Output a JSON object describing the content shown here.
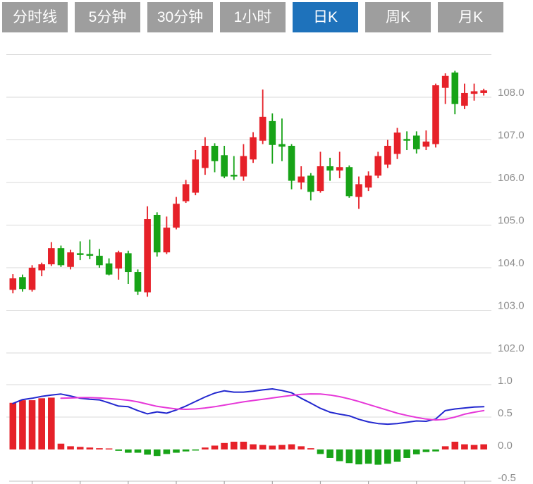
{
  "tabs": {
    "items": [
      {
        "label": "分时线",
        "active": false
      },
      {
        "label": "5分钟",
        "active": false
      },
      {
        "label": "30分钟",
        "active": false
      },
      {
        "label": "1小时",
        "active": false
      },
      {
        "label": "日K",
        "active": true
      },
      {
        "label": "周K",
        "active": false
      },
      {
        "label": "月K",
        "active": false
      }
    ]
  },
  "colors": {
    "tab_bg": "#9e9e9e",
    "tab_active_bg": "#1e72bb",
    "tab_text": "#ffffff",
    "up": "#e62129",
    "down": "#17a317",
    "dif_line": "#2328cf",
    "dea_line": "#e637d8",
    "grid": "#dadada",
    "axis_text": "#8f8f8f",
    "axis_line": "#cfcfcf"
  },
  "chart_data": {
    "type": "candlestick_with_macd",
    "convention": "red = close>open (up), green = close<open (down), Chinese style",
    "selected_timeframe": "日K",
    "price_panel": {
      "grid": true,
      "y_ticks": [
        108.0,
        107.0,
        106.0,
        105.0,
        104.0,
        103.0,
        102.0
      ],
      "y_range_visible": [
        101.9,
        109.1
      ],
      "candles_ohlc": [
        [
          103.48,
          103.85,
          103.4,
          103.75
        ],
        [
          103.78,
          103.84,
          103.44,
          103.5
        ],
        [
          103.48,
          104.06,
          103.44,
          104.0
        ],
        [
          103.94,
          104.12,
          103.8,
          104.08
        ],
        [
          104.08,
          104.6,
          104.04,
          104.46
        ],
        [
          104.46,
          104.52,
          104.02,
          104.06
        ],
        [
          104.02,
          104.42,
          103.96,
          104.36
        ],
        [
          104.34,
          104.62,
          104.18,
          104.3
        ],
        [
          104.32,
          104.66,
          104.2,
          104.28
        ],
        [
          104.28,
          104.44,
          104.0,
          104.06
        ],
        [
          104.1,
          104.22,
          103.82,
          103.84
        ],
        [
          103.98,
          104.4,
          103.72,
          104.36
        ],
        [
          104.34,
          104.4,
          103.62,
          103.9
        ],
        [
          103.9,
          103.96,
          103.36,
          103.44
        ],
        [
          103.42,
          105.44,
          103.32,
          105.14
        ],
        [
          105.24,
          105.3,
          104.26,
          104.36
        ],
        [
          104.36,
          105.2,
          104.32,
          104.94
        ],
        [
          104.94,
          105.66,
          104.9,
          105.5
        ],
        [
          105.56,
          106.06,
          105.52,
          105.96
        ],
        [
          105.76,
          106.76,
          105.7,
          106.54
        ],
        [
          106.34,
          107.06,
          106.18,
          106.86
        ],
        [
          106.86,
          106.92,
          106.24,
          106.5
        ],
        [
          106.64,
          106.86,
          106.1,
          106.14
        ],
        [
          106.18,
          106.62,
          106.06,
          106.14
        ],
        [
          106.14,
          106.9,
          106.04,
          106.62
        ],
        [
          106.54,
          107.18,
          106.46,
          107.06
        ],
        [
          106.98,
          108.18,
          106.9,
          107.54
        ],
        [
          107.44,
          107.62,
          106.44,
          106.88
        ],
        [
          106.9,
          107.5,
          106.5,
          106.84
        ],
        [
          106.86,
          106.9,
          105.84,
          106.04
        ],
        [
          106.0,
          106.38,
          105.84,
          106.14
        ],
        [
          106.16,
          106.22,
          105.58,
          105.78
        ],
        [
          105.8,
          106.72,
          105.76,
          106.38
        ],
        [
          106.38,
          106.58,
          106.04,
          106.28
        ],
        [
          106.28,
          106.72,
          106.1,
          106.36
        ],
        [
          106.36,
          106.4,
          105.64,
          105.68
        ],
        [
          105.66,
          106.14,
          105.38,
          105.96
        ],
        [
          105.88,
          106.26,
          105.8,
          106.16
        ],
        [
          106.16,
          106.72,
          106.1,
          106.62
        ],
        [
          106.42,
          107.0,
          106.34,
          106.86
        ],
        [
          106.67,
          107.28,
          106.55,
          107.17
        ],
        [
          107.02,
          107.2,
          106.76,
          106.98
        ],
        [
          107.1,
          107.2,
          106.68,
          106.78
        ],
        [
          106.84,
          107.22,
          106.76,
          106.96
        ],
        [
          106.9,
          108.32,
          106.82,
          108.28
        ],
        [
          108.22,
          108.56,
          107.84,
          108.5
        ],
        [
          108.58,
          108.62,
          107.6,
          107.84
        ],
        [
          107.8,
          108.32,
          107.72,
          108.1
        ],
        [
          108.08,
          108.32,
          107.92,
          108.14
        ],
        [
          108.1,
          108.2,
          108.04,
          108.16
        ]
      ]
    },
    "macd_panel": {
      "y_ticks": [
        1.0,
        0.5,
        0.0,
        -0.5
      ],
      "histogram": [
        0.72,
        0.76,
        0.76,
        0.79,
        0.8,
        0.09,
        0.05,
        0.04,
        0.03,
        0.02,
        0.01,
        -0.02,
        -0.05,
        -0.05,
        -0.08,
        -0.1,
        -0.07,
        -0.05,
        -0.03,
        -0.01,
        0.03,
        0.06,
        0.1,
        0.12,
        0.12,
        0.08,
        0.07,
        0.06,
        0.07,
        0.08,
        0.05,
        0.02,
        -0.07,
        -0.13,
        -0.18,
        -0.21,
        -0.23,
        -0.22,
        -0.235,
        -0.22,
        -0.19,
        -0.13,
        -0.075,
        -0.04,
        -0.03,
        0.05,
        0.12,
        0.08,
        0.07,
        0.08
      ],
      "dif": [
        0.71,
        0.77,
        0.79,
        0.82,
        0.84,
        0.855,
        0.825,
        0.79,
        0.775,
        0.765,
        0.72,
        0.67,
        0.66,
        0.6,
        0.55,
        0.58,
        0.56,
        0.61,
        0.67,
        0.74,
        0.81,
        0.87,
        0.905,
        0.885,
        0.885,
        0.9,
        0.92,
        0.935,
        0.91,
        0.875,
        0.79,
        0.715,
        0.635,
        0.575,
        0.545,
        0.52,
        0.465,
        0.425,
        0.4,
        0.39,
        0.4,
        0.42,
        0.44,
        0.435,
        0.47,
        0.6,
        0.625,
        0.64,
        0.655,
        0.66
      ],
      "dea_start_index": 5,
      "dea": [
        0.79,
        0.795,
        0.8,
        0.8,
        0.795,
        0.785,
        0.775,
        0.76,
        0.735,
        0.7,
        0.665,
        0.645,
        0.625,
        0.62,
        0.625,
        0.64,
        0.66,
        0.685,
        0.71,
        0.735,
        0.755,
        0.775,
        0.795,
        0.815,
        0.835,
        0.85,
        0.858,
        0.855,
        0.84,
        0.815,
        0.78,
        0.74,
        0.695,
        0.65,
        0.605,
        0.56,
        0.525,
        0.495,
        0.47,
        0.455,
        0.465,
        0.5,
        0.545,
        0.575,
        0.6
      ]
    },
    "x_axis": {
      "tick_candle_indexes": [
        3,
        8,
        13,
        18,
        23,
        28,
        33,
        38,
        43,
        48
      ]
    }
  }
}
